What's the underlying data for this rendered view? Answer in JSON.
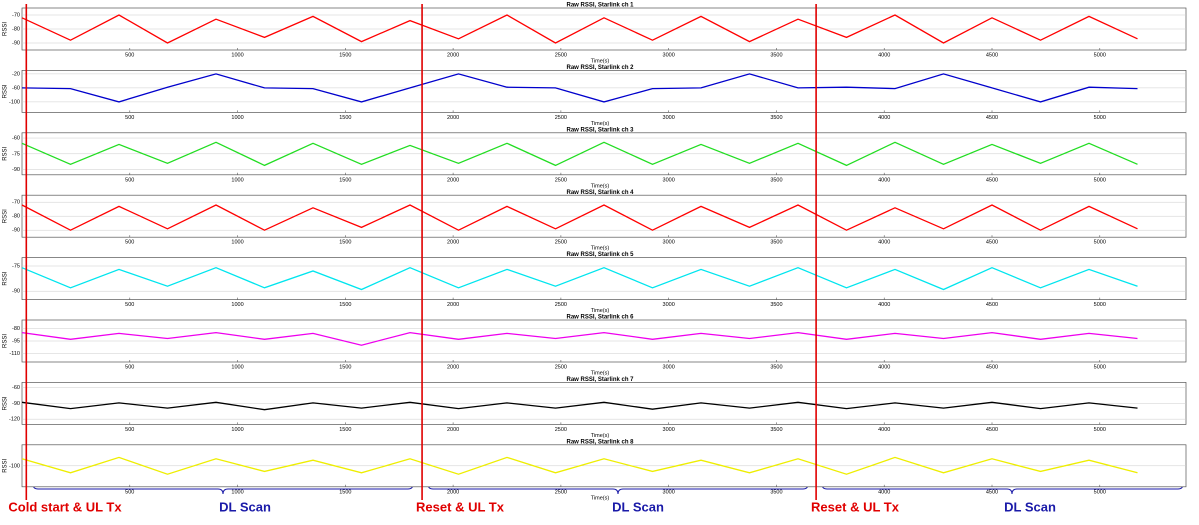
{
  "chart_data": [
    {
      "type": "line",
      "title": "Raw RSSI, Starlink ch 1",
      "xlabel": "Time(s)",
      "ylabel": "RSSI",
      "color": "#ff0000",
      "x": [
        0,
        225,
        450,
        675,
        900,
        1125,
        1350,
        1575,
        1800,
        2025,
        2250,
        2475,
        2700,
        2925,
        3150,
        3375,
        3600,
        3825,
        4050,
        4275,
        4500,
        4725,
        4950,
        5175
      ],
      "values": [
        -72,
        -88,
        -70,
        -90,
        -73,
        -86,
        -71,
        -89,
        -74,
        -87,
        -70,
        -90,
        -72,
        -88,
        -71,
        -89,
        -73,
        -86,
        -70,
        -90,
        -72,
        -88,
        -71,
        -87
      ],
      "xlim": [
        0,
        5400
      ],
      "xticks": [
        500,
        1000,
        1500,
        2000,
        2500,
        3000,
        3500,
        4000,
        4500,
        5000
      ],
      "ylim": [
        -95,
        -65
      ],
      "yticks": [
        -70,
        -80,
        -90
      ]
    },
    {
      "type": "line",
      "title": "Raw RSSI, Starlink ch 2",
      "xlabel": "Time(s)",
      "ylabel": "RSSI",
      "color": "#0000cc",
      "x": [
        0,
        225,
        450,
        675,
        900,
        1125,
        1350,
        1575,
        1800,
        2025,
        2250,
        2475,
        2700,
        2925,
        3150,
        3375,
        3600,
        3825,
        4050,
        4275,
        4500,
        4725,
        4950,
        5175
      ],
      "values": [
        -60,
        -62,
        -100,
        -58,
        -20,
        -60,
        -62,
        -100,
        -60,
        -20,
        -58,
        -60,
        -100,
        -62,
        -60,
        -20,
        -60,
        -58,
        -62,
        -20,
        -60,
        -100,
        -58,
        -62
      ],
      "xlim": [
        0,
        5400
      ],
      "xticks": [
        500,
        1000,
        1500,
        2000,
        2500,
        3000,
        3500,
        4000,
        4500,
        5000
      ],
      "ylim": [
        -130,
        -10
      ],
      "yticks": [
        -20,
        -60,
        -100
      ]
    },
    {
      "type": "line",
      "title": "Raw RSSI, Starlink ch 3",
      "xlabel": "Time(s)",
      "ylabel": "RSSI",
      "color": "#22dd22",
      "x": [
        0,
        225,
        450,
        675,
        900,
        1125,
        1350,
        1575,
        1800,
        2025,
        2250,
        2475,
        2700,
        2925,
        3150,
        3375,
        3600,
        3825,
        4050,
        4275,
        4500,
        4725,
        4950,
        5175
      ],
      "values": [
        -65,
        -85,
        -66,
        -84,
        -64,
        -86,
        -65,
        -85,
        -67,
        -84,
        -65,
        -86,
        -64,
        -85,
        -66,
        -84,
        -65,
        -86,
        -64,
        -85,
        -66,
        -84,
        -65,
        -85
      ],
      "xlim": [
        0,
        5400
      ],
      "xticks": [
        500,
        1000,
        1500,
        2000,
        2500,
        3000,
        3500,
        4000,
        4500,
        5000
      ],
      "ylim": [
        -95,
        -55
      ],
      "yticks": [
        -60,
        -75,
        -90
      ]
    },
    {
      "type": "line",
      "title": "Raw RSSI, Starlink ch 4",
      "xlabel": "Time(s)",
      "ylabel": "RSSI",
      "color": "#ff0000",
      "x": [
        0,
        225,
        450,
        675,
        900,
        1125,
        1350,
        1575,
        1800,
        2025,
        2250,
        2475,
        2700,
        2925,
        3150,
        3375,
        3600,
        3825,
        4050,
        4275,
        4500,
        4725,
        4950,
        5175
      ],
      "values": [
        -72,
        -90,
        -73,
        -89,
        -72,
        -90,
        -74,
        -88,
        -72,
        -90,
        -73,
        -89,
        -72,
        -90,
        -73,
        -88,
        -72,
        -90,
        -74,
        -89,
        -72,
        -90,
        -73,
        -89
      ],
      "xlim": [
        0,
        5400
      ],
      "xticks": [
        500,
        1000,
        1500,
        2000,
        2500,
        3000,
        3500,
        4000,
        4500,
        5000
      ],
      "ylim": [
        -95,
        -65
      ],
      "yticks": [
        -70,
        -80,
        -90
      ]
    },
    {
      "type": "line",
      "title": "Raw RSSI, Starlink ch 5",
      "xlabel": "Time(s)",
      "ylabel": "RSSI",
      "color": "#00e5ee",
      "x": [
        0,
        225,
        450,
        675,
        900,
        1125,
        1350,
        1575,
        1800,
        2025,
        2250,
        2475,
        2700,
        2925,
        3150,
        3375,
        3600,
        3825,
        4050,
        4275,
        4500,
        4725,
        4950,
        5175
      ],
      "values": [
        -76,
        -88,
        -77,
        -87,
        -76,
        -88,
        -78,
        -89,
        -76,
        -88,
        -77,
        -87,
        -76,
        -88,
        -77,
        -87,
        -76,
        -88,
        -77,
        -89,
        -76,
        -88,
        -77,
        -87
      ],
      "xlim": [
        0,
        5400
      ],
      "xticks": [
        500,
        1000,
        1500,
        2000,
        2500,
        3000,
        3500,
        4000,
        4500,
        5000
      ],
      "ylim": [
        -95,
        -70
      ],
      "yticks": [
        -75,
        -90
      ]
    },
    {
      "type": "line",
      "title": "Raw RSSI, Starlink ch 6",
      "xlabel": "Time(s)",
      "ylabel": "RSSI",
      "color": "#ee00ee",
      "x": [
        0,
        225,
        450,
        675,
        900,
        1125,
        1350,
        1575,
        1800,
        2025,
        2250,
        2475,
        2700,
        2925,
        3150,
        3375,
        3600,
        3825,
        4050,
        4275,
        4500,
        4725,
        4950,
        5175
      ],
      "values": [
        -85,
        -93,
        -86,
        -92,
        -85,
        -93,
        -86,
        -100,
        -85,
        -93,
        -86,
        -92,
        -85,
        -93,
        -86,
        -92,
        -85,
        -93,
        -86,
        -92,
        -85,
        -93,
        -86,
        -92
      ],
      "xlim": [
        0,
        5400
      ],
      "xticks": [
        500,
        1000,
        1500,
        2000,
        2500,
        3000,
        3500,
        4000,
        4500,
        5000
      ],
      "ylim": [
        -120,
        -70
      ],
      "yticks": [
        -80,
        -95,
        -110
      ]
    },
    {
      "type": "line",
      "title": "Raw RSSI, Starlink ch 7",
      "xlabel": "Time(s)",
      "ylabel": "RSSI",
      "color": "#000000",
      "x": [
        0,
        225,
        450,
        675,
        900,
        1125,
        1350,
        1575,
        1800,
        2025,
        2250,
        2475,
        2700,
        2925,
        3150,
        3375,
        3600,
        3825,
        4050,
        4275,
        4500,
        4725,
        4950,
        5175
      ],
      "values": [
        -88,
        -100,
        -89,
        -99,
        -88,
        -102,
        -89,
        -99,
        -88,
        -100,
        -89,
        -99,
        -88,
        -101,
        -89,
        -99,
        -88,
        -100,
        -89,
        -99,
        -88,
        -100,
        -89,
        -99
      ],
      "xlim": [
        0,
        5400
      ],
      "xticks": [
        500,
        1000,
        1500,
        2000,
        2500,
        3000,
        3500,
        4000,
        4500,
        5000
      ],
      "ylim": [
        -130,
        -50
      ],
      "yticks": [
        -60,
        -90,
        -120
      ]
    },
    {
      "type": "line",
      "title": "Raw RSSI, Starlink ch 8",
      "xlabel": "Time(s)",
      "ylabel": "RSSI",
      "color": "#eeee00",
      "x": [
        0,
        225,
        450,
        675,
        900,
        1125,
        1350,
        1575,
        1800,
        2025,
        2250,
        2475,
        2700,
        2925,
        3150,
        3375,
        3600,
        3825,
        4050,
        4275,
        4500,
        4725,
        4950,
        5175
      ],
      "values": [
        -95,
        -105,
        -94,
        -106,
        -95,
        -104,
        -96,
        -105,
        -95,
        -106,
        -94,
        -105,
        -95,
        -104,
        -96,
        -105,
        -95,
        -106,
        -94,
        -105,
        -95,
        -104,
        -96,
        -105
      ],
      "xlim": [
        0,
        5400
      ],
      "xticks": [
        500,
        1000,
        1500,
        2000,
        2500,
        3000,
        3500,
        4000,
        4500,
        5000
      ],
      "ylim": [
        -115,
        -85
      ],
      "yticks": [
        -100
      ]
    }
  ],
  "markers": {
    "color": "#e00000",
    "x": [
      20,
      1856,
      3684
    ]
  },
  "phases": [
    {
      "label": "Cold start & UL Tx",
      "color": "#e00000"
    },
    {
      "label": "DL Scan",
      "color": "#1a1aa8"
    },
    {
      "label": "Reset & UL Tx",
      "color": "#e00000"
    },
    {
      "label": "DL Scan",
      "color": "#1a1aa8"
    },
    {
      "label": "Reset & UL Tx",
      "color": "#e00000"
    },
    {
      "label": "DL Scan",
      "color": "#1a1aa8"
    }
  ]
}
